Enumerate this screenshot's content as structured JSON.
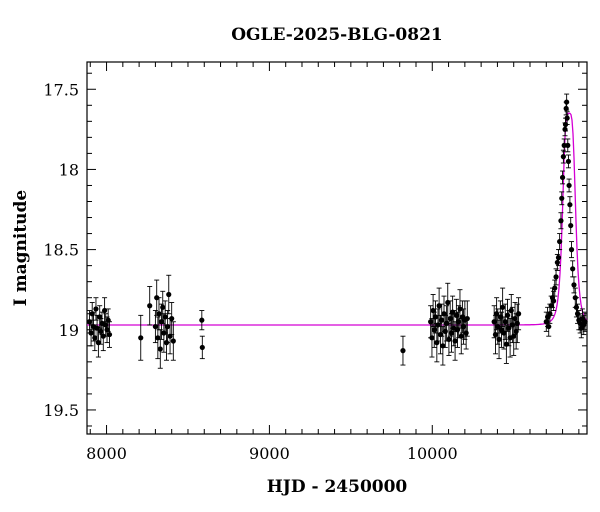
{
  "chart_data": {
    "type": "scatter",
    "title": "OGLE-2025-BLG-0821",
    "xlabel": "HJD - 2450000",
    "ylabel": "I magnitude",
    "xlim": [
      7880,
      10950
    ],
    "ylim": [
      19.65,
      17.33
    ],
    "y_inverted": true,
    "x_major_ticks": [
      8000,
      9000,
      10000
    ],
    "x_tick_labels": [
      "8000",
      "9000",
      "10000"
    ],
    "y_major_ticks": [
      17.5,
      18,
      18.5,
      19,
      19.5
    ],
    "y_tick_labels": [
      "17.5",
      "18",
      "18.5",
      "19",
      "19.5"
    ],
    "grid": false,
    "colors": {
      "points": "#000000",
      "errorbars": "#000000",
      "model": "#d400d4"
    },
    "model": {
      "name": "",
      "baseline_mag": 18.97,
      "peak_mag": 17.65,
      "peak_hjd": 10840,
      "width_days": 42
    },
    "series": [
      {
        "name": "",
        "points": [
          [
            7895,
            18.95,
            0.07
          ],
          [
            7905,
            19.02,
            0.08
          ],
          [
            7912,
            18.9,
            0.07
          ],
          [
            7920,
            18.98,
            0.09
          ],
          [
            7928,
            19.05,
            0.08
          ],
          [
            7935,
            18.87,
            0.07
          ],
          [
            7942,
            18.99,
            0.08
          ],
          [
            7950,
            19.08,
            0.09
          ],
          [
            7958,
            18.92,
            0.07
          ],
          [
            7965,
            19.01,
            0.08
          ],
          [
            7972,
            18.96,
            0.07
          ],
          [
            7980,
            19.04,
            0.09
          ],
          [
            7988,
            18.88,
            0.08
          ],
          [
            7995,
            18.97,
            0.07
          ],
          [
            8003,
            19.0,
            0.08
          ],
          [
            8010,
            18.94,
            0.07
          ],
          [
            8018,
            19.03,
            0.08
          ],
          [
            8210,
            19.05,
            0.14
          ],
          [
            8265,
            18.85,
            0.12
          ],
          [
            8300,
            18.98,
            0.1
          ],
          [
            8308,
            18.8,
            0.11
          ],
          [
            8315,
            19.05,
            0.13
          ],
          [
            8322,
            18.9,
            0.1
          ],
          [
            8330,
            19.12,
            0.12
          ],
          [
            8337,
            18.95,
            0.11
          ],
          [
            8345,
            18.86,
            0.1
          ],
          [
            8352,
            19.02,
            0.12
          ],
          [
            8360,
            18.92,
            0.1
          ],
          [
            8368,
            19.08,
            0.11
          ],
          [
            8375,
            18.98,
            0.1
          ],
          [
            8382,
            18.78,
            0.12
          ],
          [
            8390,
            19.04,
            0.11
          ],
          [
            8400,
            18.93,
            0.1
          ],
          [
            8410,
            19.07,
            0.12
          ],
          [
            8585,
            18.94,
            0.06
          ],
          [
            8588,
            19.11,
            0.07
          ],
          [
            9820,
            19.13,
            0.09
          ],
          [
            9990,
            18.95,
            0.1
          ],
          [
            9998,
            19.05,
            0.12
          ],
          [
            10005,
            18.88,
            0.1
          ],
          [
            10012,
            19.0,
            0.11
          ],
          [
            10020,
            18.92,
            0.1
          ],
          [
            10028,
            19.08,
            0.12
          ],
          [
            10035,
            18.97,
            0.1
          ],
          [
            10042,
            18.85,
            0.11
          ],
          [
            10050,
            19.03,
            0.12
          ],
          [
            10058,
            18.94,
            0.1
          ],
          [
            10065,
            19.1,
            0.12
          ],
          [
            10072,
            18.9,
            0.11
          ],
          [
            10080,
            19.01,
            0.1
          ],
          [
            10088,
            18.96,
            0.11
          ],
          [
            10095,
            18.83,
            0.12
          ],
          [
            10102,
            19.06,
            0.1
          ],
          [
            10110,
            18.93,
            0.11
          ],
          [
            10118,
            19.02,
            0.12
          ],
          [
            10125,
            18.89,
            0.1
          ],
          [
            10132,
            18.99,
            0.11
          ],
          [
            10140,
            19.07,
            0.12
          ],
          [
            10148,
            18.91,
            0.1
          ],
          [
            10155,
            19.0,
            0.11
          ],
          [
            10162,
            18.95,
            0.1
          ],
          [
            10170,
            18.87,
            0.12
          ],
          [
            10178,
            19.04,
            0.11
          ],
          [
            10185,
            18.92,
            0.1
          ],
          [
            10192,
            18.98,
            0.11
          ],
          [
            10200,
            18.94,
            0.12
          ],
          [
            10208,
            19.02,
            0.1
          ],
          [
            10215,
            18.93,
            0.11
          ],
          [
            10380,
            18.95,
            0.1
          ],
          [
            10388,
            19.03,
            0.12
          ],
          [
            10395,
            18.9,
            0.1
          ],
          [
            10402,
            18.98,
            0.11
          ],
          [
            10410,
            19.06,
            0.12
          ],
          [
            10418,
            18.92,
            0.1
          ],
          [
            10425,
            19.0,
            0.11
          ],
          [
            10432,
            18.86,
            0.12
          ],
          [
            10440,
            19.02,
            0.1
          ],
          [
            10448,
            18.95,
            0.11
          ],
          [
            10455,
            19.09,
            0.12
          ],
          [
            10462,
            18.91,
            0.1
          ],
          [
            10470,
            18.99,
            0.11
          ],
          [
            10478,
            19.05,
            0.12
          ],
          [
            10485,
            18.88,
            0.1
          ],
          [
            10492,
            18.97,
            0.11
          ],
          [
            10500,
            19.04,
            0.12
          ],
          [
            10508,
            18.93,
            0.1
          ],
          [
            10515,
            19.01,
            0.11
          ],
          [
            10522,
            18.96,
            0.12
          ],
          [
            10530,
            18.9,
            0.1
          ],
          [
            10700,
            18.95,
            0.06
          ],
          [
            10708,
            18.92,
            0.06
          ],
          [
            10715,
            18.98,
            0.06
          ],
          [
            10722,
            18.9,
            0.06
          ],
          [
            10730,
            18.85,
            0.06
          ],
          [
            10738,
            18.8,
            0.06
          ],
          [
            10745,
            18.82,
            0.06
          ],
          [
            10752,
            18.74,
            0.05
          ],
          [
            10760,
            18.67,
            0.05
          ],
          [
            10768,
            18.58,
            0.05
          ],
          [
            10775,
            18.55,
            0.05
          ],
          [
            10782,
            18.45,
            0.05
          ],
          [
            10790,
            18.32,
            0.05
          ],
          [
            10795,
            18.18,
            0.04
          ],
          [
            10800,
            18.05,
            0.04
          ],
          [
            10805,
            17.92,
            0.04
          ],
          [
            10810,
            17.85,
            0.04
          ],
          [
            10815,
            17.75,
            0.04
          ],
          [
            10818,
            17.72,
            0.04
          ],
          [
            10822,
            17.62,
            0.04
          ],
          [
            10825,
            17.58,
            0.05
          ],
          [
            10828,
            17.68,
            0.04
          ],
          [
            10832,
            17.85,
            0.04
          ],
          [
            10836,
            17.95,
            0.04
          ],
          [
            10840,
            18.1,
            0.04
          ],
          [
            10845,
            18.22,
            0.05
          ],
          [
            10850,
            18.35,
            0.05
          ],
          [
            10855,
            18.5,
            0.05
          ],
          [
            10862,
            18.62,
            0.05
          ],
          [
            10870,
            18.72,
            0.05
          ],
          [
            10878,
            18.8,
            0.06
          ],
          [
            10885,
            18.86,
            0.06
          ],
          [
            10892,
            18.9,
            0.06
          ],
          [
            10900,
            18.94,
            0.06
          ],
          [
            10908,
            18.96,
            0.06
          ],
          [
            10915,
            18.99,
            0.06
          ],
          [
            10922,
            18.93,
            0.06
          ],
          [
            10930,
            18.97,
            0.06
          ],
          [
            10938,
            18.95,
            0.06
          ]
        ]
      }
    ]
  }
}
